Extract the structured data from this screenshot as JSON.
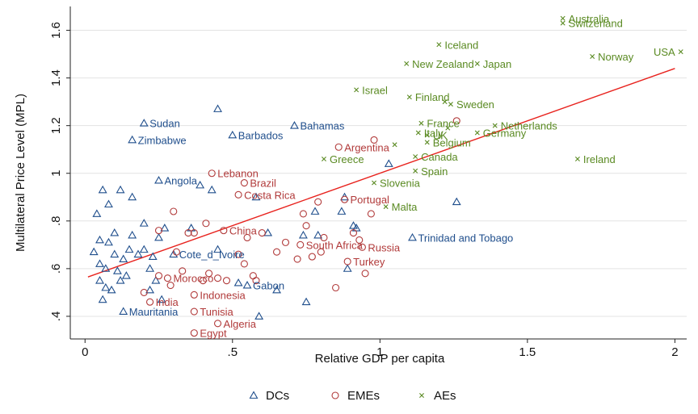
{
  "chart_data": {
    "type": "scatter",
    "xlabel": "Relative GDP per capita",
    "ylabel": "Multilateral Price Level (MPL)",
    "xlim": [
      -0.05,
      2.04
    ],
    "ylim": [
      0.305,
      1.7
    ],
    "x_ticks": [
      {
        "v": 0,
        "label": "0"
      },
      {
        "v": 0.5,
        "label": ".5"
      },
      {
        "v": 1,
        "label": "1"
      },
      {
        "v": 1.5,
        "label": "1.5"
      },
      {
        "v": 2,
        "label": "2"
      }
    ],
    "y_ticks": [
      {
        "v": 0.4,
        "label": ".4"
      },
      {
        "v": 0.6,
        "label": ".6"
      },
      {
        "v": 0.8,
        "label": ".8"
      },
      {
        "v": 1.0,
        "label": "1"
      },
      {
        "v": 1.2,
        "label": "1.2"
      },
      {
        "v": 1.4,
        "label": "1.4"
      },
      {
        "v": 1.6,
        "label": "1.6"
      }
    ],
    "grid": "horizontal",
    "legend_position": "bottom",
    "fit_line": {
      "x": [
        0.01,
        2.0
      ],
      "y": [
        0.565,
        1.44
      ],
      "color": "#e8231e"
    },
    "series": [
      {
        "name": "DCs",
        "marker": "triangle",
        "color": "#1f4e8c",
        "points": [
          {
            "x": 0.2,
            "y": 1.21,
            "label": "Sudan"
          },
          {
            "x": 0.16,
            "y": 1.14,
            "label": "Zimbabwe"
          },
          {
            "x": 0.45,
            "y": 1.27
          },
          {
            "x": 0.5,
            "y": 1.16,
            "label": "Barbados"
          },
          {
            "x": 0.71,
            "y": 1.2,
            "label": "Bahamas"
          },
          {
            "x": 0.25,
            "y": 0.97,
            "label": "Angola"
          },
          {
            "x": 0.39,
            "y": 0.95
          },
          {
            "x": 0.43,
            "y": 0.93
          },
          {
            "x": 0.58,
            "y": 0.9
          },
          {
            "x": 1.03,
            "y": 1.04
          },
          {
            "x": 1.26,
            "y": 0.88
          },
          {
            "x": 1.11,
            "y": 0.73,
            "label": "Trinidad and Tobago"
          },
          {
            "x": 0.3,
            "y": 0.66,
            "label": "Cote_d_Ivoire"
          },
          {
            "x": 0.55,
            "y": 0.53,
            "label": "Gabon"
          },
          {
            "x": 0.13,
            "y": 0.42,
            "label": "Mauritania"
          },
          {
            "x": 0.06,
            "y": 0.93
          },
          {
            "x": 0.12,
            "y": 0.93
          },
          {
            "x": 0.16,
            "y": 0.9
          },
          {
            "x": 0.04,
            "y": 0.83
          },
          {
            "x": 0.08,
            "y": 0.87
          },
          {
            "x": 0.1,
            "y": 0.75
          },
          {
            "x": 0.16,
            "y": 0.74
          },
          {
            "x": 0.2,
            "y": 0.79
          },
          {
            "x": 0.25,
            "y": 0.73
          },
          {
            "x": 0.27,
            "y": 0.77
          },
          {
            "x": 0.36,
            "y": 0.77
          },
          {
            "x": 0.05,
            "y": 0.72
          },
          {
            "x": 0.08,
            "y": 0.71
          },
          {
            "x": 0.03,
            "y": 0.67
          },
          {
            "x": 0.1,
            "y": 0.66
          },
          {
            "x": 0.13,
            "y": 0.64
          },
          {
            "x": 0.15,
            "y": 0.68
          },
          {
            "x": 0.18,
            "y": 0.66
          },
          {
            "x": 0.2,
            "y": 0.68
          },
          {
            "x": 0.23,
            "y": 0.65
          },
          {
            "x": 0.05,
            "y": 0.62
          },
          {
            "x": 0.07,
            "y": 0.6
          },
          {
            "x": 0.11,
            "y": 0.59
          },
          {
            "x": 0.14,
            "y": 0.57
          },
          {
            "x": 0.05,
            "y": 0.55
          },
          {
            "x": 0.07,
            "y": 0.52
          },
          {
            "x": 0.09,
            "y": 0.51
          },
          {
            "x": 0.06,
            "y": 0.47
          },
          {
            "x": 0.12,
            "y": 0.55
          },
          {
            "x": 0.22,
            "y": 0.6
          },
          {
            "x": 0.24,
            "y": 0.55
          },
          {
            "x": 0.26,
            "y": 0.47
          },
          {
            "x": 0.22,
            "y": 0.51
          },
          {
            "x": 0.52,
            "y": 0.54
          },
          {
            "x": 0.59,
            "y": 0.4
          },
          {
            "x": 0.65,
            "y": 0.51
          },
          {
            "x": 0.62,
            "y": 0.75
          },
          {
            "x": 0.74,
            "y": 0.74
          },
          {
            "x": 0.78,
            "y": 0.84
          },
          {
            "x": 0.79,
            "y": 0.74
          },
          {
            "x": 0.87,
            "y": 0.84
          },
          {
            "x": 0.88,
            "y": 0.9
          },
          {
            "x": 0.91,
            "y": 0.78
          },
          {
            "x": 0.92,
            "y": 0.77
          },
          {
            "x": 0.89,
            "y": 0.6
          },
          {
            "x": 0.75,
            "y": 0.46
          },
          {
            "x": 0.45,
            "y": 0.68
          }
        ]
      },
      {
        "name": "EMEs",
        "marker": "circle",
        "color": "#b13a3a",
        "points": [
          {
            "x": 0.43,
            "y": 1.0,
            "label": "Lebanon"
          },
          {
            "x": 0.54,
            "y": 0.96,
            "label": "Brazil"
          },
          {
            "x": 0.52,
            "y": 0.91,
            "label": "Costa Rica"
          },
          {
            "x": 0.86,
            "y": 1.11,
            "label": "Argentina"
          },
          {
            "x": 0.98,
            "y": 1.14
          },
          {
            "x": 1.26,
            "y": 1.22
          },
          {
            "x": 0.47,
            "y": 0.76,
            "label": "China"
          },
          {
            "x": 0.73,
            "y": 0.7,
            "label": "South Africa"
          },
          {
            "x": 0.94,
            "y": 0.69,
            "label": "Russia"
          },
          {
            "x": 0.89,
            "y": 0.63,
            "label": "Turkey"
          },
          {
            "x": 0.88,
            "y": 0.89,
            "label": "Portugal"
          },
          {
            "x": 0.28,
            "y": 0.56,
            "label": "Morocco"
          },
          {
            "x": 0.37,
            "y": 0.49,
            "label": "Indonesia"
          },
          {
            "x": 0.37,
            "y": 0.42,
            "label": "Tunisia"
          },
          {
            "x": 0.22,
            "y": 0.46,
            "label": "India"
          },
          {
            "x": 0.45,
            "y": 0.37,
            "label": "Algeria"
          },
          {
            "x": 0.37,
            "y": 0.33,
            "label": "Egypt"
          },
          {
            "x": 0.3,
            "y": 0.84
          },
          {
            "x": 0.25,
            "y": 0.76
          },
          {
            "x": 0.35,
            "y": 0.75
          },
          {
            "x": 0.37,
            "y": 0.75
          },
          {
            "x": 0.31,
            "y": 0.67
          },
          {
            "x": 0.41,
            "y": 0.79
          },
          {
            "x": 0.55,
            "y": 0.73
          },
          {
            "x": 0.57,
            "y": 0.57
          },
          {
            "x": 0.6,
            "y": 0.75
          },
          {
            "x": 0.65,
            "y": 0.67
          },
          {
            "x": 0.68,
            "y": 0.71
          },
          {
            "x": 0.72,
            "y": 0.64
          },
          {
            "x": 0.75,
            "y": 0.78
          },
          {
            "x": 0.77,
            "y": 0.65
          },
          {
            "x": 0.8,
            "y": 0.67
          },
          {
            "x": 0.81,
            "y": 0.73
          },
          {
            "x": 0.74,
            "y": 0.83
          },
          {
            "x": 0.79,
            "y": 0.88
          },
          {
            "x": 0.91,
            "y": 0.75
          },
          {
            "x": 0.93,
            "y": 0.72
          },
          {
            "x": 0.97,
            "y": 0.83
          },
          {
            "x": 0.95,
            "y": 0.58
          },
          {
            "x": 0.85,
            "y": 0.52
          },
          {
            "x": 0.52,
            "y": 0.66
          },
          {
            "x": 0.54,
            "y": 0.62
          },
          {
            "x": 0.4,
            "y": 0.55
          },
          {
            "x": 0.42,
            "y": 0.58
          },
          {
            "x": 0.45,
            "y": 0.56
          },
          {
            "x": 0.48,
            "y": 0.55
          },
          {
            "x": 0.29,
            "y": 0.53
          },
          {
            "x": 0.33,
            "y": 0.59
          },
          {
            "x": 0.2,
            "y": 0.5
          },
          {
            "x": 0.25,
            "y": 0.57
          },
          {
            "x": 0.58,
            "y": 0.55
          }
        ]
      },
      {
        "name": "AEs",
        "marker": "x",
        "color": "#5a8a22",
        "points": [
          {
            "x": 1.62,
            "y": 1.65,
            "label": "Australia"
          },
          {
            "x": 1.62,
            "y": 1.63,
            "label": "Switzerland"
          },
          {
            "x": 1.2,
            "y": 1.54,
            "label": "Iceland"
          },
          {
            "x": 1.33,
            "y": 1.46,
            "label": "Japan"
          },
          {
            "x": 1.09,
            "y": 1.46,
            "label": "New Zealand"
          },
          {
            "x": 2.02,
            "y": 1.51,
            "label": "USA"
          },
          {
            "x": 1.72,
            "y": 1.49,
            "label": "Norway"
          },
          {
            "x": 0.92,
            "y": 1.35,
            "label": "Israel"
          },
          {
            "x": 1.1,
            "y": 1.32,
            "label": "Finland"
          },
          {
            "x": 1.22,
            "y": 1.3
          },
          {
            "x": 1.24,
            "y": 1.29,
            "label": "Sweden"
          },
          {
            "x": 1.14,
            "y": 1.21,
            "label": "France"
          },
          {
            "x": 1.39,
            "y": 1.2,
            "label": "Netherlands"
          },
          {
            "x": 1.33,
            "y": 1.17,
            "label": "Germany"
          },
          {
            "x": 1.23,
            "y": 1.19
          },
          {
            "x": 1.13,
            "y": 1.17,
            "label": "Italy"
          },
          {
            "x": 1.16,
            "y": 1.16,
            "label": "UK"
          },
          {
            "x": 1.16,
            "y": 1.13,
            "label": "Belgium"
          },
          {
            "x": 1.05,
            "y": 1.12
          },
          {
            "x": 1.12,
            "y": 1.07,
            "label": "Canada"
          },
          {
            "x": 0.81,
            "y": 1.06,
            "label": "Greece"
          },
          {
            "x": 1.67,
            "y": 1.06,
            "label": "Ireland"
          },
          {
            "x": 1.12,
            "y": 1.01,
            "label": "Spain"
          },
          {
            "x": 0.98,
            "y": 0.96,
            "label": "Slovenia"
          },
          {
            "x": 1.02,
            "y": 0.86,
            "label": "Malta"
          }
        ]
      }
    ]
  }
}
